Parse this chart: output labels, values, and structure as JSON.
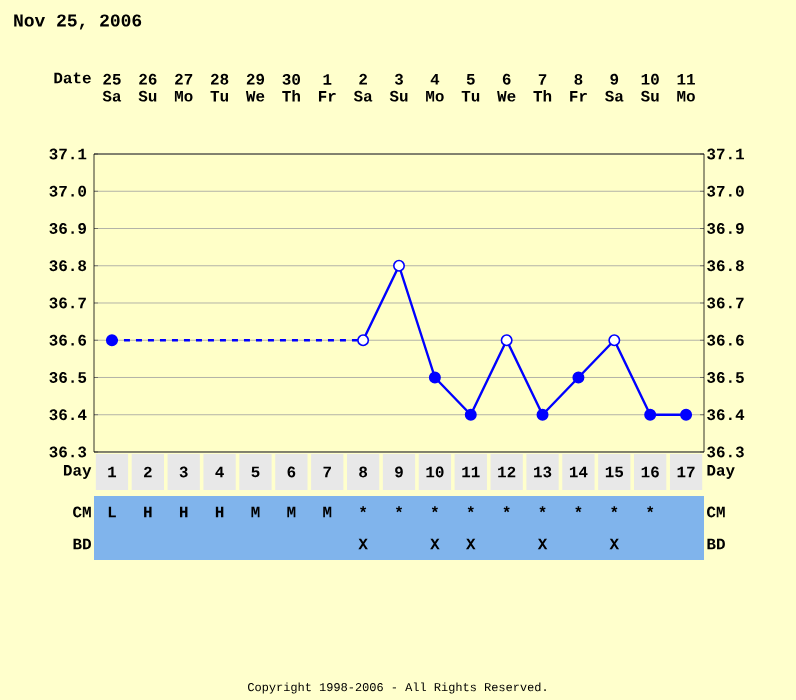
{
  "chart_data": [
    {
      "type": "line",
      "title": "Nov 25, 2006",
      "xlabel": "Day",
      "x2label": "Date",
      "categories": [
        "1",
        "2",
        "3",
        "4",
        "5",
        "6",
        "7",
        "8",
        "9",
        "10",
        "11",
        "12",
        "13",
        "14",
        "15",
        "16",
        "17"
      ],
      "x2lim": [
        "2006-11-25",
        "2006-12-11"
      ],
      "x2ticks": [
        {
          "value": "2006-11-25",
          "label": "25 Sa"
        },
        {
          "value": "2006-11-26",
          "label": "26 Su"
        },
        {
          "value": "2006-11-27",
          "label": "27 Mo"
        },
        {
          "value": "2006-11-28",
          "label": "28 Tu"
        },
        {
          "value": "2006-11-29",
          "label": "29 We"
        },
        {
          "value": "2006-11-30",
          "label": "30 Th"
        },
        {
          "value": "2006-12-01",
          "label": "1 Fr"
        },
        {
          "value": "2006-12-02",
          "label": "2 Sa"
        },
        {
          "value": "2006-12-03",
          "label": "3 Su"
        },
        {
          "value": "2006-12-04",
          "label": "4 Mo"
        },
        {
          "value": "2006-12-05",
          "label": "5 Tu"
        },
        {
          "value": "2006-12-06",
          "label": "6 We"
        },
        {
          "value": "2006-12-07",
          "label": "7 Th"
        },
        {
          "value": "2006-12-08",
          "label": "8 Fr"
        },
        {
          "value": "2006-12-09",
          "label": "9 Sa"
        },
        {
          "value": "2006-12-10",
          "label": "10 Su"
        },
        {
          "value": "2006-12-11",
          "label": "11 Mo"
        }
      ],
      "ylim": [
        36.3,
        37.1
      ],
      "yticks": [
        36.3,
        36.4,
        36.5,
        36.6,
        36.7,
        36.8,
        36.9,
        {
          "value": 37,
          "label": "37.0"
        },
        37.1
      ],
      "y2lim": [
        36.3,
        37.1
      ],
      "y2ticks": [
        36.3,
        36.4,
        36.5,
        36.6,
        36.7,
        36.8,
        36.9,
        {
          "value": 37,
          "label": "37.0"
        },
        37.1
      ],
      "grid": true,
      "marker": "circle",
      "series": [
        {
          "type": "line",
          "line_style": "solid",
          "color": "#0000ff",
          "values": [
            36.6,
            null,
            null,
            null,
            null,
            null,
            null,
            36.6,
            36.8,
            36.5,
            36.4,
            36.6,
            36.4,
            36.5,
            36.6,
            36.4,
            36.4
          ],
          "colors": [
            "#0000ff",
            null,
            null,
            null,
            null,
            null,
            null,
            "#ffffff",
            "#ffffff",
            "#0000ff",
            "#0000ff",
            "#ffffff",
            "#0000ff",
            "#0000ff",
            "#ffffff",
            "#0000ff",
            "#0000ff"
          ]
        }
      ],
      "annotations": [
        "Copyright 1998-2006 - All Rights Reserved."
      ]
    },
    {
      "type": "heatmap",
      "tick_labels": "y",
      "categories": [
        null,
        null,
        null,
        null,
        null,
        null,
        null,
        null,
        null,
        null,
        null,
        null,
        null,
        null,
        null,
        null,
        null
      ],
      "y_categories": [
        "CM",
        "BD"
      ],
      "y2_categories": [
        "CM",
        "BD"
      ],
      "cells": [
        [
          null,
          null,
          null,
          null,
          null,
          null,
          null,
          null,
          null,
          null,
          null,
          null,
          null,
          null,
          null,
          null,
          null
        ],
        [
          null,
          null,
          null,
          null,
          null,
          null,
          null,
          null,
          null,
          null,
          null,
          null,
          null,
          null,
          null,
          null,
          null
        ]
      ],
      "cell_labels": [
        [
          "L",
          "H",
          "H",
          "H",
          "M",
          "M",
          "M",
          "*",
          "*",
          "*",
          "*",
          "*",
          "*",
          "*",
          "*",
          "*",
          null
        ],
        [
          null,
          null,
          null,
          null,
          null,
          null,
          null,
          "X",
          null,
          "X",
          "X",
          null,
          "X",
          null,
          "X",
          null,
          null
        ]
      ]
    }
  ]
}
